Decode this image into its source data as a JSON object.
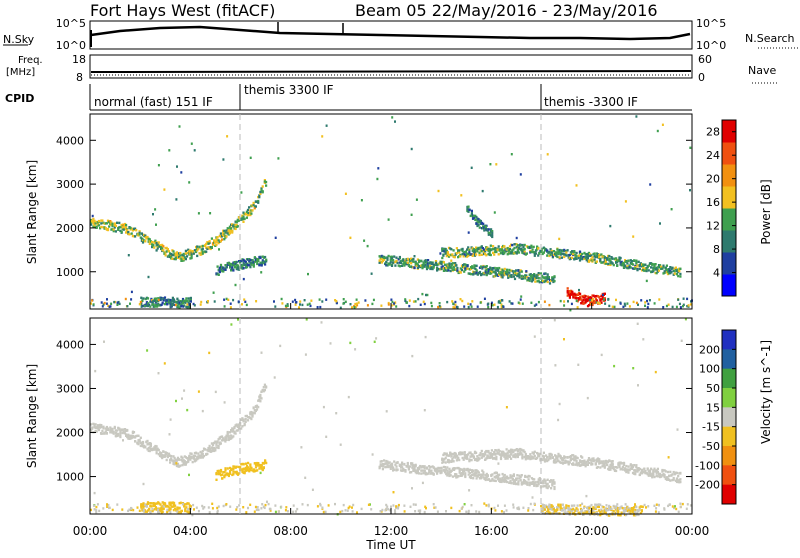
{
  "header": {
    "station": "Fort Hays West (fitACF)",
    "beam_date": "Beam 05  22/May/2016 - 23/May/2016"
  },
  "noise_panel": {
    "left_label": "N.Sky",
    "left_ticks": [
      "10^5",
      "10^0"
    ],
    "right_ticks": [
      "10^5",
      "10^0"
    ],
    "right_label": "N.Search"
  },
  "freq_panel": {
    "left_label_top": "Freq.",
    "left_label_unit": "[MHz]",
    "left_ticks": [
      "18",
      "8"
    ],
    "right_ticks": [
      "60",
      "0"
    ],
    "right_label": "Nave"
  },
  "cpid_panel": {
    "label": "CPID",
    "modes": [
      "normal (fast) 151 IF",
      "themis 3300 IF",
      "themis -3300 IF"
    ]
  },
  "x_axis": {
    "title": "Time UT",
    "ticks": [
      "00:00",
      "04:00",
      "08:00",
      "12:00",
      "16:00",
      "20:00",
      "00:00"
    ]
  },
  "colors": {
    "power": [
      "#0000ff",
      "#1f3fa0",
      "#2e7a6e",
      "#3f9f4f",
      "#f2c020",
      "#f29010",
      "#f05010",
      "#e00000"
    ],
    "velocity": [
      "#2030c0",
      "#2060a0",
      "#40a040",
      "#80d040",
      "#c8c8c0",
      "#f0c020",
      "#f09010",
      "#f05010",
      "#e00000"
    ],
    "ground_scatter": "#c8c8c0"
  },
  "chart_data": [
    {
      "type": "heatmap",
      "panel": "power",
      "ylabel": "Slant Range [km]",
      "yticks": [
        "1000",
        "2000",
        "3000",
        "4000"
      ],
      "ylim": [
        150,
        4600
      ],
      "xlim_hours": [
        0,
        24
      ],
      "colorbar": {
        "label": "Power [dB]",
        "ticks": [
          "4",
          "8",
          "12",
          "16",
          "20",
          "24",
          "28"
        ],
        "range": [
          0,
          30
        ]
      },
      "features": [
        {
          "t": [
            0,
            1.5,
            2.5,
            3.5,
            4.5,
            5.5,
            6.5,
            7.0
          ],
          "range": [
            2150,
            2000,
            1650,
            1350,
            1550,
            1950,
            2500,
            3100
          ],
          "power": 14
        },
        {
          "t": [
            5.0,
            6.0,
            7.0
          ],
          "range": [
            1050,
            1200,
            1300
          ],
          "power": 10
        },
        {
          "t": [
            2.0,
            3.0,
            4.0
          ],
          "range": [
            340,
            330,
            320
          ],
          "power": 10
        },
        {
          "t": [
            11.5,
            14.0,
            16.5,
            18.5
          ],
          "range": [
            1300,
            1150,
            1000,
            850
          ],
          "power": 12
        },
        {
          "t": [
            14.0,
            17.0,
            20.0,
            23.5
          ],
          "range": [
            1450,
            1550,
            1350,
            1000
          ],
          "power": 12
        },
        {
          "t": [
            19.0,
            19.8,
            20.5
          ],
          "range": [
            550,
            350,
            450
          ],
          "power": 28
        },
        {
          "t": [
            15.0,
            15.5,
            16.0
          ],
          "range": [
            2500,
            2100,
            1900
          ],
          "power": 10
        }
      ]
    },
    {
      "type": "heatmap",
      "panel": "velocity",
      "ylabel": "Slant Range [km]",
      "yticks": [
        "1000",
        "2000",
        "3000",
        "4000"
      ],
      "ylim": [
        150,
        4600
      ],
      "xlim_hours": [
        0,
        24
      ],
      "colorbar": {
        "label": "Velocity [m s^-1]",
        "ticks": [
          "200",
          "100",
          "50",
          "15",
          "-15",
          "-50",
          "-100",
          "-200"
        ],
        "range": [
          -250,
          250
        ]
      },
      "features": [
        {
          "t": [
            0,
            1.5,
            2.5,
            3.5,
            4.5,
            5.5,
            6.5,
            7.0
          ],
          "range": [
            2150,
            2000,
            1650,
            1350,
            1550,
            1950,
            2500,
            3100
          ],
          "velocity": 0
        },
        {
          "t": [
            5.0,
            6.0,
            7.0
          ],
          "range": [
            1050,
            1200,
            1300
          ],
          "velocity": -70
        },
        {
          "t": [
            2.0,
            3.0,
            4.0
          ],
          "range": [
            340,
            330,
            320
          ],
          "velocity": -60
        },
        {
          "t": [
            11.5,
            14.0,
            16.5,
            18.5
          ],
          "range": [
            1300,
            1150,
            1000,
            850
          ],
          "velocity": 0
        },
        {
          "t": [
            14.0,
            17.0,
            20.0,
            23.5
          ],
          "range": [
            1450,
            1550,
            1350,
            1000
          ],
          "velocity": 0
        },
        {
          "t": [
            18.0,
            20.0,
            22.0
          ],
          "range": [
            300,
            250,
            250
          ],
          "velocity": -30
        }
      ]
    }
  ]
}
